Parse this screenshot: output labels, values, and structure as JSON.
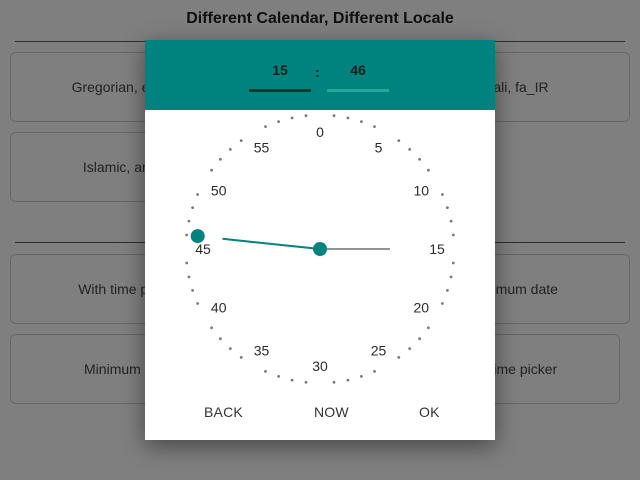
{
  "page": {
    "title": "Different Calendar, Different Locale",
    "buttons": [
      "Gregorian, en_US",
      "Jalali, fa_IR",
      "Islamic, ar_AE",
      "With time picker",
      "Maximum date",
      "Minimum date",
      "Only time picker"
    ]
  },
  "dialog": {
    "hour": "15",
    "separator": ":",
    "minute": "46",
    "clock_labels": [
      "0",
      "5",
      "10",
      "15",
      "20",
      "25",
      "30",
      "35",
      "40",
      "45",
      "50",
      "55"
    ],
    "selected_minute": 46,
    "actions": {
      "back": "BACK",
      "now": "NOW",
      "ok": "OK"
    }
  },
  "colors": {
    "accent": "#00827f",
    "hour_underline": "#0f3536",
    "minute_underline": "#27a79b",
    "overlay": "rgba(0,0,0,0.5)"
  }
}
